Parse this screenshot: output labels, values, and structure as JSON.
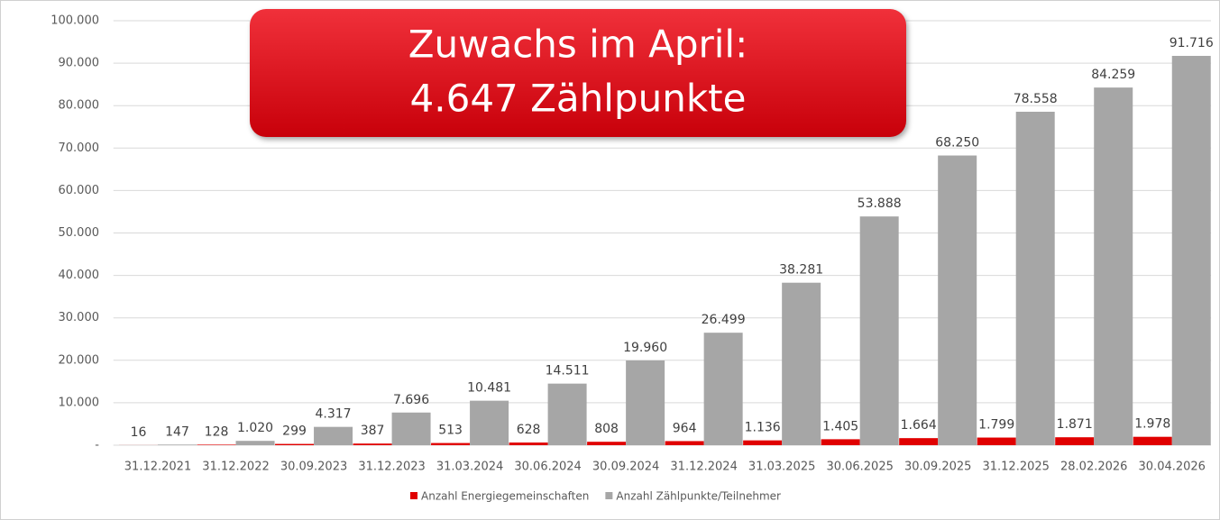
{
  "chart_data": {
    "type": "bar",
    "categories": [
      "31.12.2021",
      "31.12.2022",
      "30.09.2023",
      "31.12.2023",
      "31.03.2024",
      "30.06.2024",
      "30.09.2024",
      "31.12.2024",
      "31.03.2025",
      "30.06.2025",
      "30.09.2025",
      "31.12.2025",
      "28.02.2026",
      "30.04.2026"
    ],
    "series": [
      {
        "name": "Anzahl Energiegemeinschaften",
        "color": "#e00000",
        "values": [
          16,
          128,
          299,
          387,
          513,
          628,
          808,
          964,
          1136,
          1405,
          1664,
          1799,
          1871,
          1978
        ],
        "value_labels": [
          "16",
          "128",
          "299",
          "387",
          "513",
          "628",
          "808",
          "964",
          "1.136",
          "1.405",
          "1.664",
          "1.799",
          "1.871",
          "1.978"
        ]
      },
      {
        "name": "Anzahl Zählpunkte/Teilnehmer",
        "color": "#a6a6a6",
        "values": [
          147,
          1020,
          4317,
          7696,
          10481,
          14511,
          19960,
          26499,
          38281,
          53888,
          68250,
          78558,
          84259,
          91716
        ],
        "value_labels": [
          "147",
          "1.020",
          "4.317",
          "7.696",
          "10.481",
          "14.511",
          "19.960",
          "26.499",
          "38.281",
          "53.888",
          "68.250",
          "78.558",
          "84.259",
          "91.716"
        ]
      }
    ],
    "ylim": [
      0,
      100000
    ],
    "yticks": [
      {
        "value": 0,
        "label": "-"
      },
      {
        "value": 10000,
        "label": "10.000"
      },
      {
        "value": 20000,
        "label": "20.000"
      },
      {
        "value": 30000,
        "label": "30.000"
      },
      {
        "value": 40000,
        "label": "40.000"
      },
      {
        "value": 50000,
        "label": "50.000"
      },
      {
        "value": 60000,
        "label": "60.000"
      },
      {
        "value": 70000,
        "label": "70.000"
      },
      {
        "value": 80000,
        "label": "80.000"
      },
      {
        "value": 90000,
        "label": "90.000"
      },
      {
        "value": 100000,
        "label": "100.000"
      }
    ],
    "grid": true,
    "legend": "bottom",
    "annotation": [
      "Zuwachs im April:",
      "4.647 Zählpunkte"
    ]
  }
}
